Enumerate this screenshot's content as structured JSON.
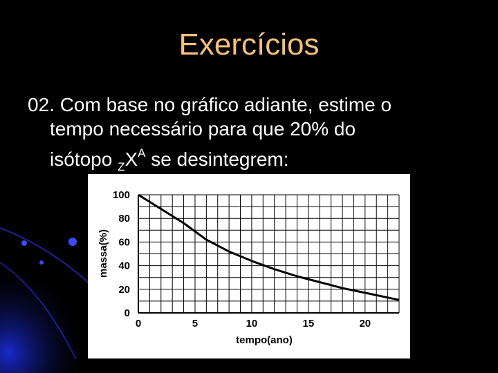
{
  "slide": {
    "title": "Exercícios",
    "line1": "02. Com base no gráfico adiante, estime o",
    "line2": "tempo necessário para que 20% do",
    "line3_pre": "isótopo ",
    "line3_sub": "Z",
    "line3_x": "X",
    "line3_sup": "A",
    "line3_post": " se desintegrem:"
  },
  "colors": {
    "background": "#000000",
    "title": "#f4c07c",
    "text": "#ffffff",
    "accent_blue": "#1a2bd6"
  },
  "chart_data": {
    "type": "line",
    "xlabel": "tempo(ano)",
    "ylabel": "massa(%)",
    "xlim": [
      0,
      23
    ],
    "ylim": [
      0,
      100
    ],
    "x_ticks": [
      "0",
      "5",
      "10",
      "15",
      "20"
    ],
    "y_ticks": [
      "0",
      "20",
      "40",
      "60",
      "80",
      "100"
    ],
    "grid": true,
    "series": [
      {
        "values_x": [
          0,
          2,
          4,
          6,
          8,
          10,
          12,
          14,
          16,
          18,
          20,
          22,
          23
        ],
        "values_y": [
          100,
          88,
          76,
          62,
          52,
          44,
          37,
          31,
          26,
          21,
          17,
          13,
          11
        ]
      }
    ]
  }
}
